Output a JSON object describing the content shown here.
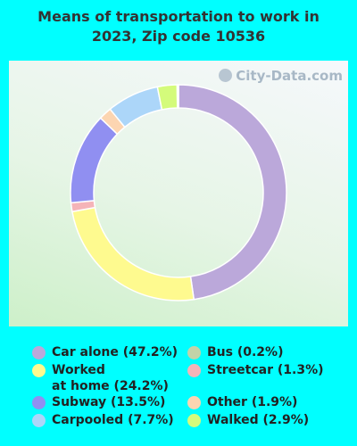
{
  "chart_data": {
    "type": "pie",
    "title": "Means of transportation to work in\n2023, Zip code 10536",
    "watermark": "City-Data.com",
    "slices": [
      {
        "label": "Car alone (47.2%)",
        "value": 47.2,
        "color": "#bba8da"
      },
      {
        "label": "Worked\nat home (24.2%)",
        "value": 24.2,
        "color": "#fefa8f"
      },
      {
        "label": "Streetcar (1.3%)",
        "value": 1.3,
        "color": "#f5b4b8"
      },
      {
        "label": "Subway (13.5%)",
        "value": 13.5,
        "color": "#908ff1"
      },
      {
        "label": "Other (1.9%)",
        "value": 1.9,
        "color": "#fcd5b1"
      },
      {
        "label": "Carpooled (7.7%)",
        "value": 7.7,
        "color": "#acd6f9"
      },
      {
        "label": "Walked (2.9%)",
        "value": 2.9,
        "color": "#d4fb7b"
      },
      {
        "label": "Bus (0.2%)",
        "value": 0.2,
        "color": "#c2d3a8"
      }
    ]
  }
}
